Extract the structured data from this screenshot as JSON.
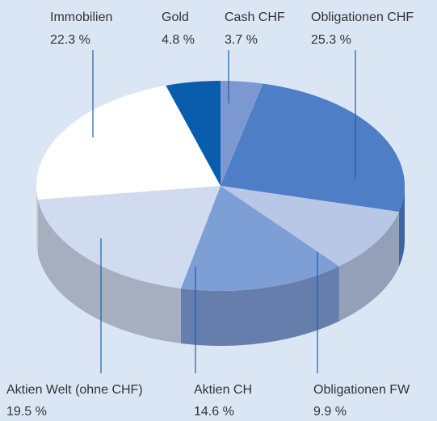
{
  "chart_data": {
    "type": "pie3d",
    "categories": [
      "Cash CHF",
      "Obligationen CHF",
      "Obligationen FW",
      "Aktien CH",
      "Aktien Welt (ohne CHF)",
      "Immobilien",
      "Gold"
    ],
    "values": [
      3.7,
      25.3,
      9.9,
      14.6,
      19.5,
      22.3,
      4.8
    ],
    "value_labels": [
      "3.7 %",
      "25.3 %",
      "9.9 %",
      "14.6 %",
      "19.5 %",
      "22.3 %",
      "4.8 %"
    ],
    "colors": [
      "#7b98d0",
      "#4e7ec6",
      "#b9c7e6",
      "#7e9ed6",
      "#d0dbf0",
      "#ffffff",
      "#0a5cad"
    ]
  }
}
